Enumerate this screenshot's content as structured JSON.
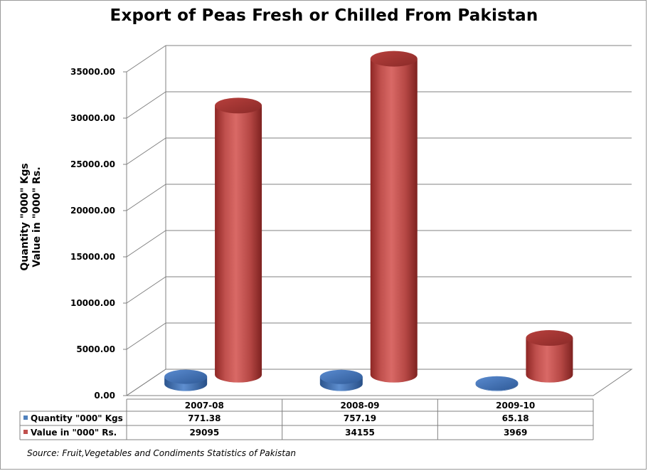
{
  "chart_data": {
    "type": "bar",
    "title": "Export of Peas Fresh or Chilled From Pakistan",
    "ylabel_lines": [
      "Quantity \"000\" Kgs",
      "Value in \"000\" Rs."
    ],
    "categories": [
      "2007-08",
      "2008-09",
      "2009-10"
    ],
    "series": [
      {
        "name": "Quantity \"000\" Kgs",
        "values": [
          771.38,
          757.19,
          65.18
        ],
        "display": [
          "771.38",
          "757.19",
          "65.18"
        ],
        "color": "#4f81bd"
      },
      {
        "name": "Value in \"000\" Rs.",
        "values": [
          29095,
          34155,
          3969
        ],
        "display": [
          "29095",
          "34155",
          "3969"
        ],
        "color": "#c0504d"
      }
    ],
    "ylim": [
      0,
      35000
    ],
    "yticks": [
      0,
      5000,
      10000,
      15000,
      20000,
      25000,
      30000,
      35000
    ],
    "ytick_labels": [
      "0.00",
      "5000.00",
      "10000.00",
      "15000.00",
      "20000.00",
      "25000.00",
      "30000.00",
      "35000.00"
    ],
    "grid": true,
    "legend": "data-table"
  },
  "source": "Source: Fruit,Vegetables and Condiments Statistics of Pakistan"
}
